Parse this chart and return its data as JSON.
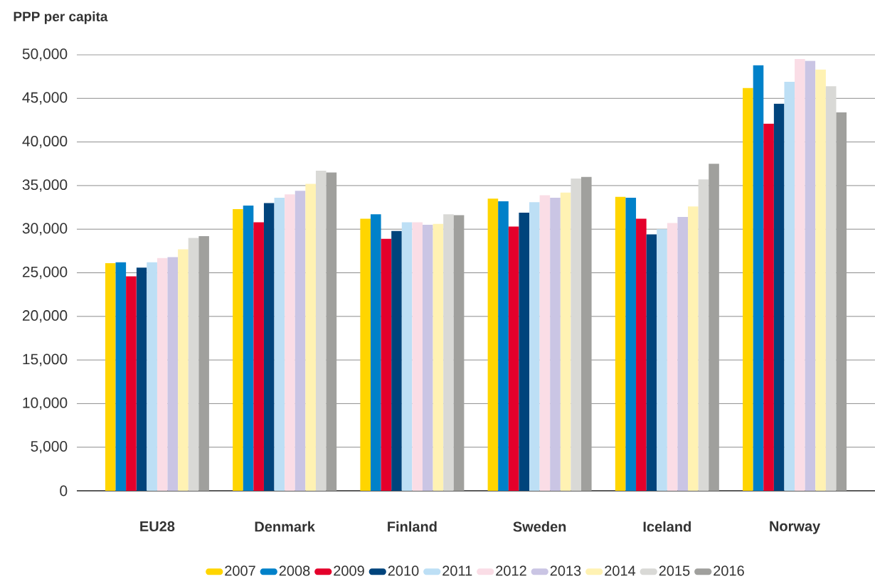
{
  "chart_data": {
    "type": "bar",
    "ylabel": "PPP per capita",
    "categories": [
      "EU28",
      "Denmark",
      "Finland",
      "Sweden",
      "Iceland",
      "Norway"
    ],
    "series": [
      {
        "name": "2007",
        "color": "#ffd500",
        "values": [
          26100,
          32300,
          31200,
          33500,
          33700,
          46200
        ]
      },
      {
        "name": "2008",
        "color": "#0081c9",
        "values": [
          26200,
          32700,
          31700,
          33200,
          33600,
          48800
        ]
      },
      {
        "name": "2009",
        "color": "#e4002b",
        "values": [
          24600,
          30800,
          28900,
          30300,
          31200,
          42100
        ]
      },
      {
        "name": "2010",
        "color": "#00447c",
        "values": [
          25600,
          33000,
          29800,
          31900,
          29400,
          44400
        ]
      },
      {
        "name": "2011",
        "color": "#bddff5",
        "values": [
          26200,
          33600,
          30800,
          33100,
          30000,
          46900
        ]
      },
      {
        "name": "2012",
        "color": "#fadde6",
        "values": [
          26700,
          34000,
          30800,
          33900,
          30700,
          49500
        ]
      },
      {
        "name": "2013",
        "color": "#cac5e4",
        "values": [
          26800,
          34400,
          30500,
          33600,
          31400,
          49300
        ]
      },
      {
        "name": "2014",
        "color": "#fff2b3",
        "values": [
          27700,
          35200,
          30600,
          34200,
          32600,
          48300
        ]
      },
      {
        "name": "2015",
        "color": "#d9d9d6",
        "values": [
          29000,
          36700,
          31700,
          35800,
          35700,
          46400
        ]
      },
      {
        "name": "2016",
        "color": "#a0a09d",
        "values": [
          29200,
          36500,
          31600,
          36000,
          37500,
          43400
        ]
      }
    ],
    "ylim": [
      0,
      50000
    ],
    "yticks": [
      {
        "value": 0,
        "label": "0"
      },
      {
        "value": 5000,
        "label": "5,000"
      },
      {
        "value": 10000,
        "label": "10,000"
      },
      {
        "value": 15000,
        "label": "15,000"
      },
      {
        "value": 20000,
        "label": "20,000"
      },
      {
        "value": 25000,
        "label": "25,000"
      },
      {
        "value": 30000,
        "label": "30,000"
      },
      {
        "value": 35000,
        "label": "35,000"
      },
      {
        "value": 40000,
        "label": "40,000"
      },
      {
        "value": 45000,
        "label": "45,000"
      },
      {
        "value": 50000,
        "label": "50,000"
      }
    ],
    "grid": "y",
    "legend": "bottom"
  }
}
